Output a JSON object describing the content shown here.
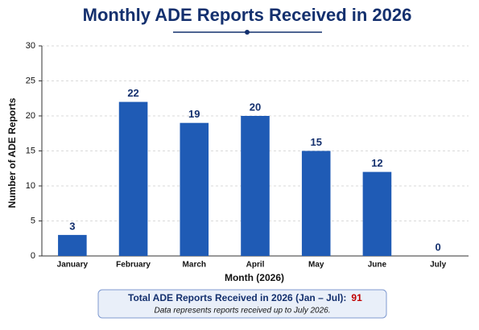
{
  "chart_data": {
    "type": "bar",
    "title": "Monthly ADE Reports Received in 2026",
    "x_label": "Month (2026)",
    "y_label": "Number of ADE Reports",
    "categories": [
      "January",
      "February",
      "March",
      "April",
      "May",
      "June",
      "July"
    ],
    "values": [
      3,
      22,
      19,
      20,
      15,
      12,
      0
    ],
    "color": "#1f5bb5",
    "ylim": [
      0,
      30
    ],
    "yticks": [
      0,
      5,
      10,
      15,
      20,
      25,
      30
    ],
    "grid": true,
    "summary": {
      "label": "Total ADE Reports Received in 2026 (Jan – Jul):",
      "total": 91,
      "note": "Data represents reports received up to July 2026."
    }
  }
}
